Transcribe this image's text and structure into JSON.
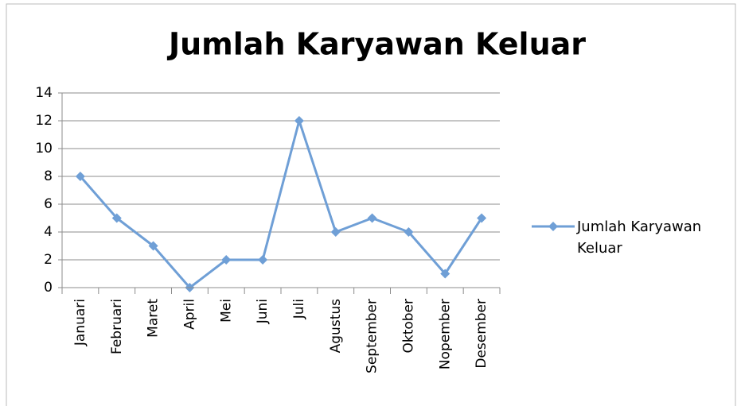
{
  "chart_data": {
    "type": "line",
    "title": "Jumlah Karyawan Keluar",
    "categories": [
      "Januari",
      "Februari",
      "Maret",
      "April",
      "Mei",
      "Juni",
      "Juli",
      "Agustus",
      "September",
      "Oktober",
      "Nopember",
      "Desember"
    ],
    "series": [
      {
        "name": "Jumlah Karyawan Keluar",
        "color": "#6f9fd6",
        "values": [
          8,
          5,
          3,
          0,
          2,
          2,
          12,
          4,
          5,
          4,
          1,
          5
        ]
      }
    ],
    "ylim": [
      0,
      14
    ],
    "yticks": [
      0,
      2,
      4,
      6,
      8,
      10,
      12,
      14
    ],
    "grid": true,
    "legend": "right"
  }
}
